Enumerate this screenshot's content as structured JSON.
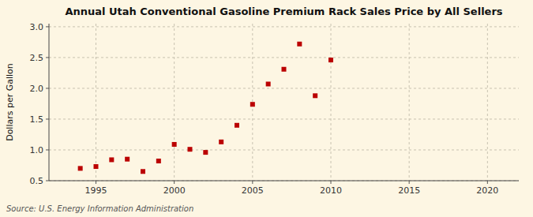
{
  "chart_data": {
    "type": "scatter",
    "title": "Annual Utah Conventional Gasoline Premium Rack Sales Price by All Sellers",
    "ylabel": "Dollars per Gallon",
    "source": "Source: U.S. Energy Information Administration",
    "x": [
      1994,
      1995,
      1996,
      1997,
      1998,
      1999,
      2000,
      2001,
      2002,
      2003,
      2004,
      2005,
      2006,
      2007,
      2008,
      2009,
      2010
    ],
    "values": [
      0.7,
      0.73,
      0.84,
      0.85,
      0.65,
      0.82,
      1.09,
      1.01,
      0.96,
      1.13,
      1.4,
      1.74,
      2.07,
      2.31,
      2.72,
      1.88,
      2.46
    ],
    "color": "#bb0000",
    "marker": "square",
    "xlim": [
      1992.0,
      2022.0
    ],
    "ylim": [
      0.5,
      3.05
    ],
    "xticks": [
      1995,
      2000,
      2005,
      2010,
      2015,
      2020
    ],
    "yticks": [
      0.5,
      {
        "value": 1.0,
        "label": "1.0"
      },
      1.5,
      {
        "value": 2.0,
        "label": "2.0"
      },
      2.5,
      {
        "value": 3.0,
        "label": "3.0"
      }
    ],
    "grid": true
  }
}
